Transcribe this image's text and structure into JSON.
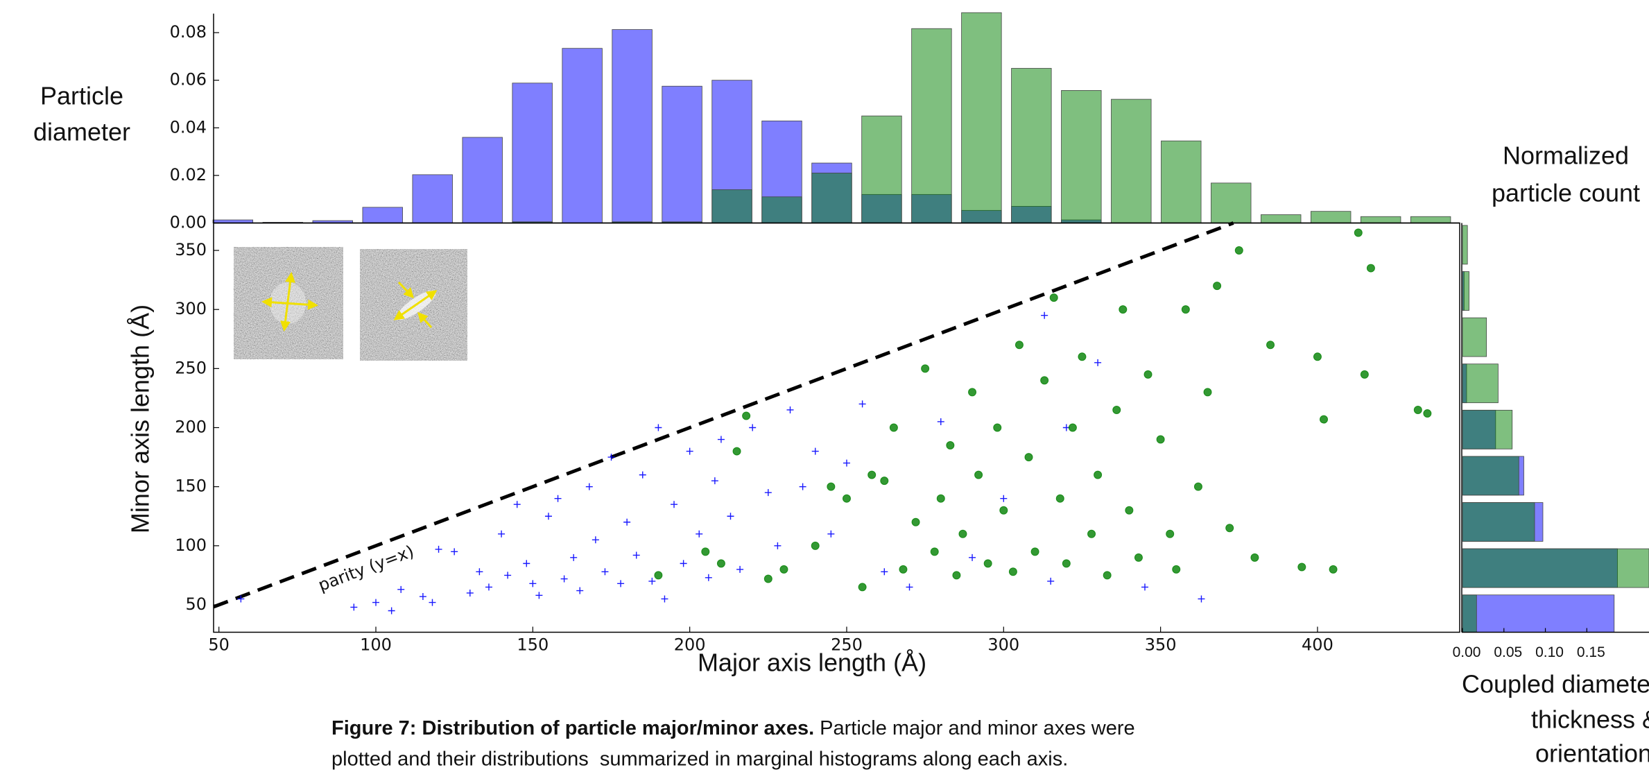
{
  "chart_data": [
    {
      "type": "histogram",
      "bins": [
        46.5,
        62.4,
        78.3,
        94.2,
        110.1,
        126.0,
        141.9,
        157.8,
        173.7,
        189.6,
        205.5,
        221.4,
        237.3,
        253.2,
        269.1,
        285.0,
        300.9,
        316.8,
        332.7,
        348.6,
        364.5,
        380.4,
        396.3,
        412.2,
        428.1,
        444.0
      ],
      "series": [
        {
          "color": "#0000ff",
          "alpha": 0.5,
          "values": [
            0.0013,
            0.0003,
            0.001,
            0.0066,
            0.0203,
            0.036,
            0.0588,
            0.0734,
            0.0813,
            0.0575,
            0.06,
            0.0429,
            0.0252,
            0.012,
            0.012,
            0.0053,
            0.007,
            0.0013,
            0,
            0,
            0,
            0,
            0,
            0,
            0
          ]
        },
        {
          "color": "#008000",
          "alpha": 0.5,
          "values": [
            0,
            0,
            0,
            0,
            0,
            0,
            0.0005,
            0,
            0.0005,
            0.0005,
            0.014,
            0.011,
            0.021,
            0.045,
            0.0817,
            0.0884,
            0.065,
            0.0557,
            0.052,
            0.0345,
            0.0168,
            0.0035,
            0.0049,
            0.0027,
            0.0027
          ]
        }
      ],
      "xlim": [
        48.3,
        445.3
      ],
      "ylim": [
        0,
        0.088
      ],
      "yticks": [
        {
          "value": 0,
          "label": "0.00"
        },
        {
          "value": 0.02,
          "label": "0.02"
        },
        {
          "value": 0.04,
          "label": "0.04"
        },
        {
          "value": 0.06,
          "label": "0.06"
        },
        {
          "value": 0.08,
          "label": "0.08"
        }
      ]
    },
    {
      "type": "scatter",
      "xlabel": "Major axis length (Å)",
      "ylabel": "Minor axis length (Å)",
      "parity_label": "parity (y=x)",
      "series": [
        {
          "color": "#0000ff",
          "marker": "+",
          "alpha": 0.9,
          "x": [
            57,
            93,
            100,
            105,
            108,
            115,
            118,
            120,
            125,
            130,
            133,
            136,
            140,
            142,
            145,
            148,
            150,
            152,
            155,
            158,
            160,
            163,
            165,
            168,
            170,
            173,
            175,
            178,
            180,
            183,
            185,
            188,
            190,
            192,
            195,
            198,
            200,
            203,
            206,
            208,
            210,
            213,
            216,
            220,
            225,
            228,
            232,
            236,
            240,
            245,
            250,
            255,
            262,
            270,
            280,
            290,
            300,
            313,
            315,
            320,
            330,
            345,
            363
          ],
          "values": [
            55,
            48,
            52,
            45,
            63,
            57,
            52,
            97,
            95,
            60,
            78,
            65,
            110,
            75,
            135,
            85,
            68,
            58,
            125,
            140,
            72,
            90,
            62,
            150,
            105,
            78,
            175,
            68,
            120,
            92,
            160,
            70,
            200,
            55,
            135,
            85,
            180,
            110,
            73,
            155,
            190,
            125,
            80,
            200,
            145,
            100,
            215,
            150,
            180,
            110,
            170,
            220,
            78,
            65,
            205,
            90,
            140,
            295,
            70,
            200,
            255,
            65,
            55
          ]
        },
        {
          "color": "#008000",
          "marker": "o",
          "alpha": 0.8,
          "x": [
            190,
            205,
            210,
            215,
            218,
            225,
            230,
            240,
            245,
            250,
            255,
            258,
            262,
            265,
            268,
            272,
            275,
            278,
            280,
            283,
            285,
            287,
            290,
            292,
            295,
            298,
            300,
            303,
            305,
            308,
            310,
            313,
            316,
            318,
            320,
            322,
            325,
            328,
            330,
            333,
            336,
            338,
            340,
            343,
            346,
            350,
            353,
            355,
            358,
            362,
            365,
            368,
            372,
            375,
            380,
            385,
            395,
            400,
            402,
            405,
            415,
            417,
            432,
            435,
            413
          ],
          "values": [
            75,
            95,
            85,
            180,
            210,
            72,
            80,
            100,
            150,
            140,
            65,
            160,
            155,
            200,
            80,
            120,
            250,
            95,
            140,
            185,
            75,
            110,
            230,
            160,
            85,
            200,
            130,
            78,
            270,
            175,
            95,
            240,
            310,
            140,
            85,
            200,
            260,
            110,
            160,
            75,
            215,
            300,
            130,
            90,
            245,
            190,
            110,
            80,
            300,
            150,
            230,
            320,
            115,
            350,
            90,
            270,
            82,
            260,
            207,
            80,
            245,
            335,
            215,
            212,
            365
          ]
        }
      ],
      "xlim": [
        48.3,
        445.3
      ],
      "ylim": [
        26.8,
        373.2
      ],
      "xticks": [
        50,
        100,
        150,
        200,
        250,
        300,
        350,
        400
      ],
      "yticks": [
        50,
        100,
        150,
        200,
        250,
        300,
        350
      ]
    },
    {
      "type": "histogram",
      "orientation": "horizontal",
      "bins": [
        22.4,
        61.5,
        100.6,
        139.7,
        178.8,
        217.9,
        257.0,
        296.1,
        335.2,
        374.3
      ],
      "series": [
        {
          "color": "#0000ff",
          "alpha": 0.5,
          "values": [
            0.183,
            0.187,
            0.097,
            0.074,
            0.04,
            0.005,
            0,
            0.002,
            0
          ]
        },
        {
          "color": "#008000",
          "alpha": 0.5,
          "values": [
            0.017,
            0.225,
            0.087,
            0.068,
            0.06,
            0.043,
            0.029,
            0.008,
            0.006
          ]
        }
      ],
      "xlim": [
        0,
        0.225
      ],
      "ylim": [
        26.8,
        373.2
      ],
      "xticks": [
        {
          "value": 0,
          "label": "0.00"
        },
        {
          "value": 0.05,
          "label": "0.05"
        },
        {
          "value": 0.1,
          "label": "0.10"
        },
        {
          "value": 0.15,
          "label": "0.15"
        }
      ]
    }
  ],
  "side_labels": {
    "diameter": [
      "Particle",
      "diameter"
    ],
    "count": [
      "Normalized",
      "particle count"
    ],
    "orientation": [
      "Coupled diameter,",
      "thickness &",
      "orientation"
    ]
  },
  "caption": {
    "title": "Figure 7: Distribution of particle major/minor axes.",
    "lines": [
      "Particle major and minor axes were",
      "plotted and their distributions  summarized in marginal histograms along each axis."
    ]
  }
}
